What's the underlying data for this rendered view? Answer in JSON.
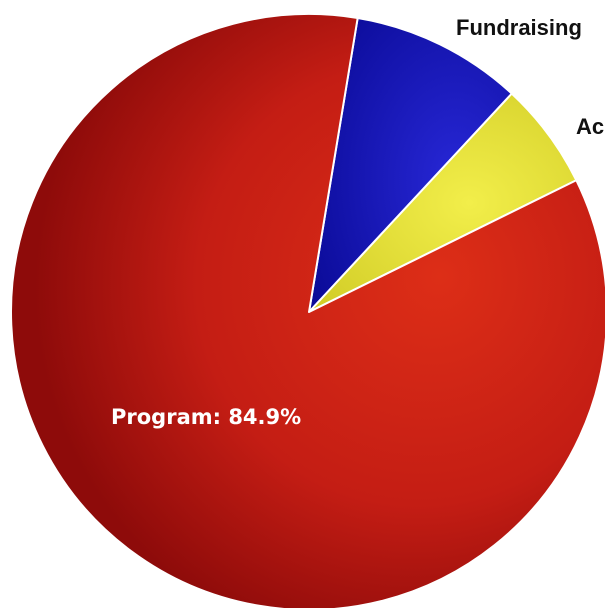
{
  "chart_data": {
    "type": "pie",
    "slices": [
      {
        "name": "Program",
        "value": 84.9,
        "color": "#c81e14",
        "label": "Program: 84.9%"
      },
      {
        "name": "Fundraising",
        "value": 9.3,
        "color": "#1414b4",
        "label": "Fundraising"
      },
      {
        "name": "Administration",
        "value": 5.8,
        "color": "#e6e032",
        "label": "Ac"
      }
    ]
  }
}
